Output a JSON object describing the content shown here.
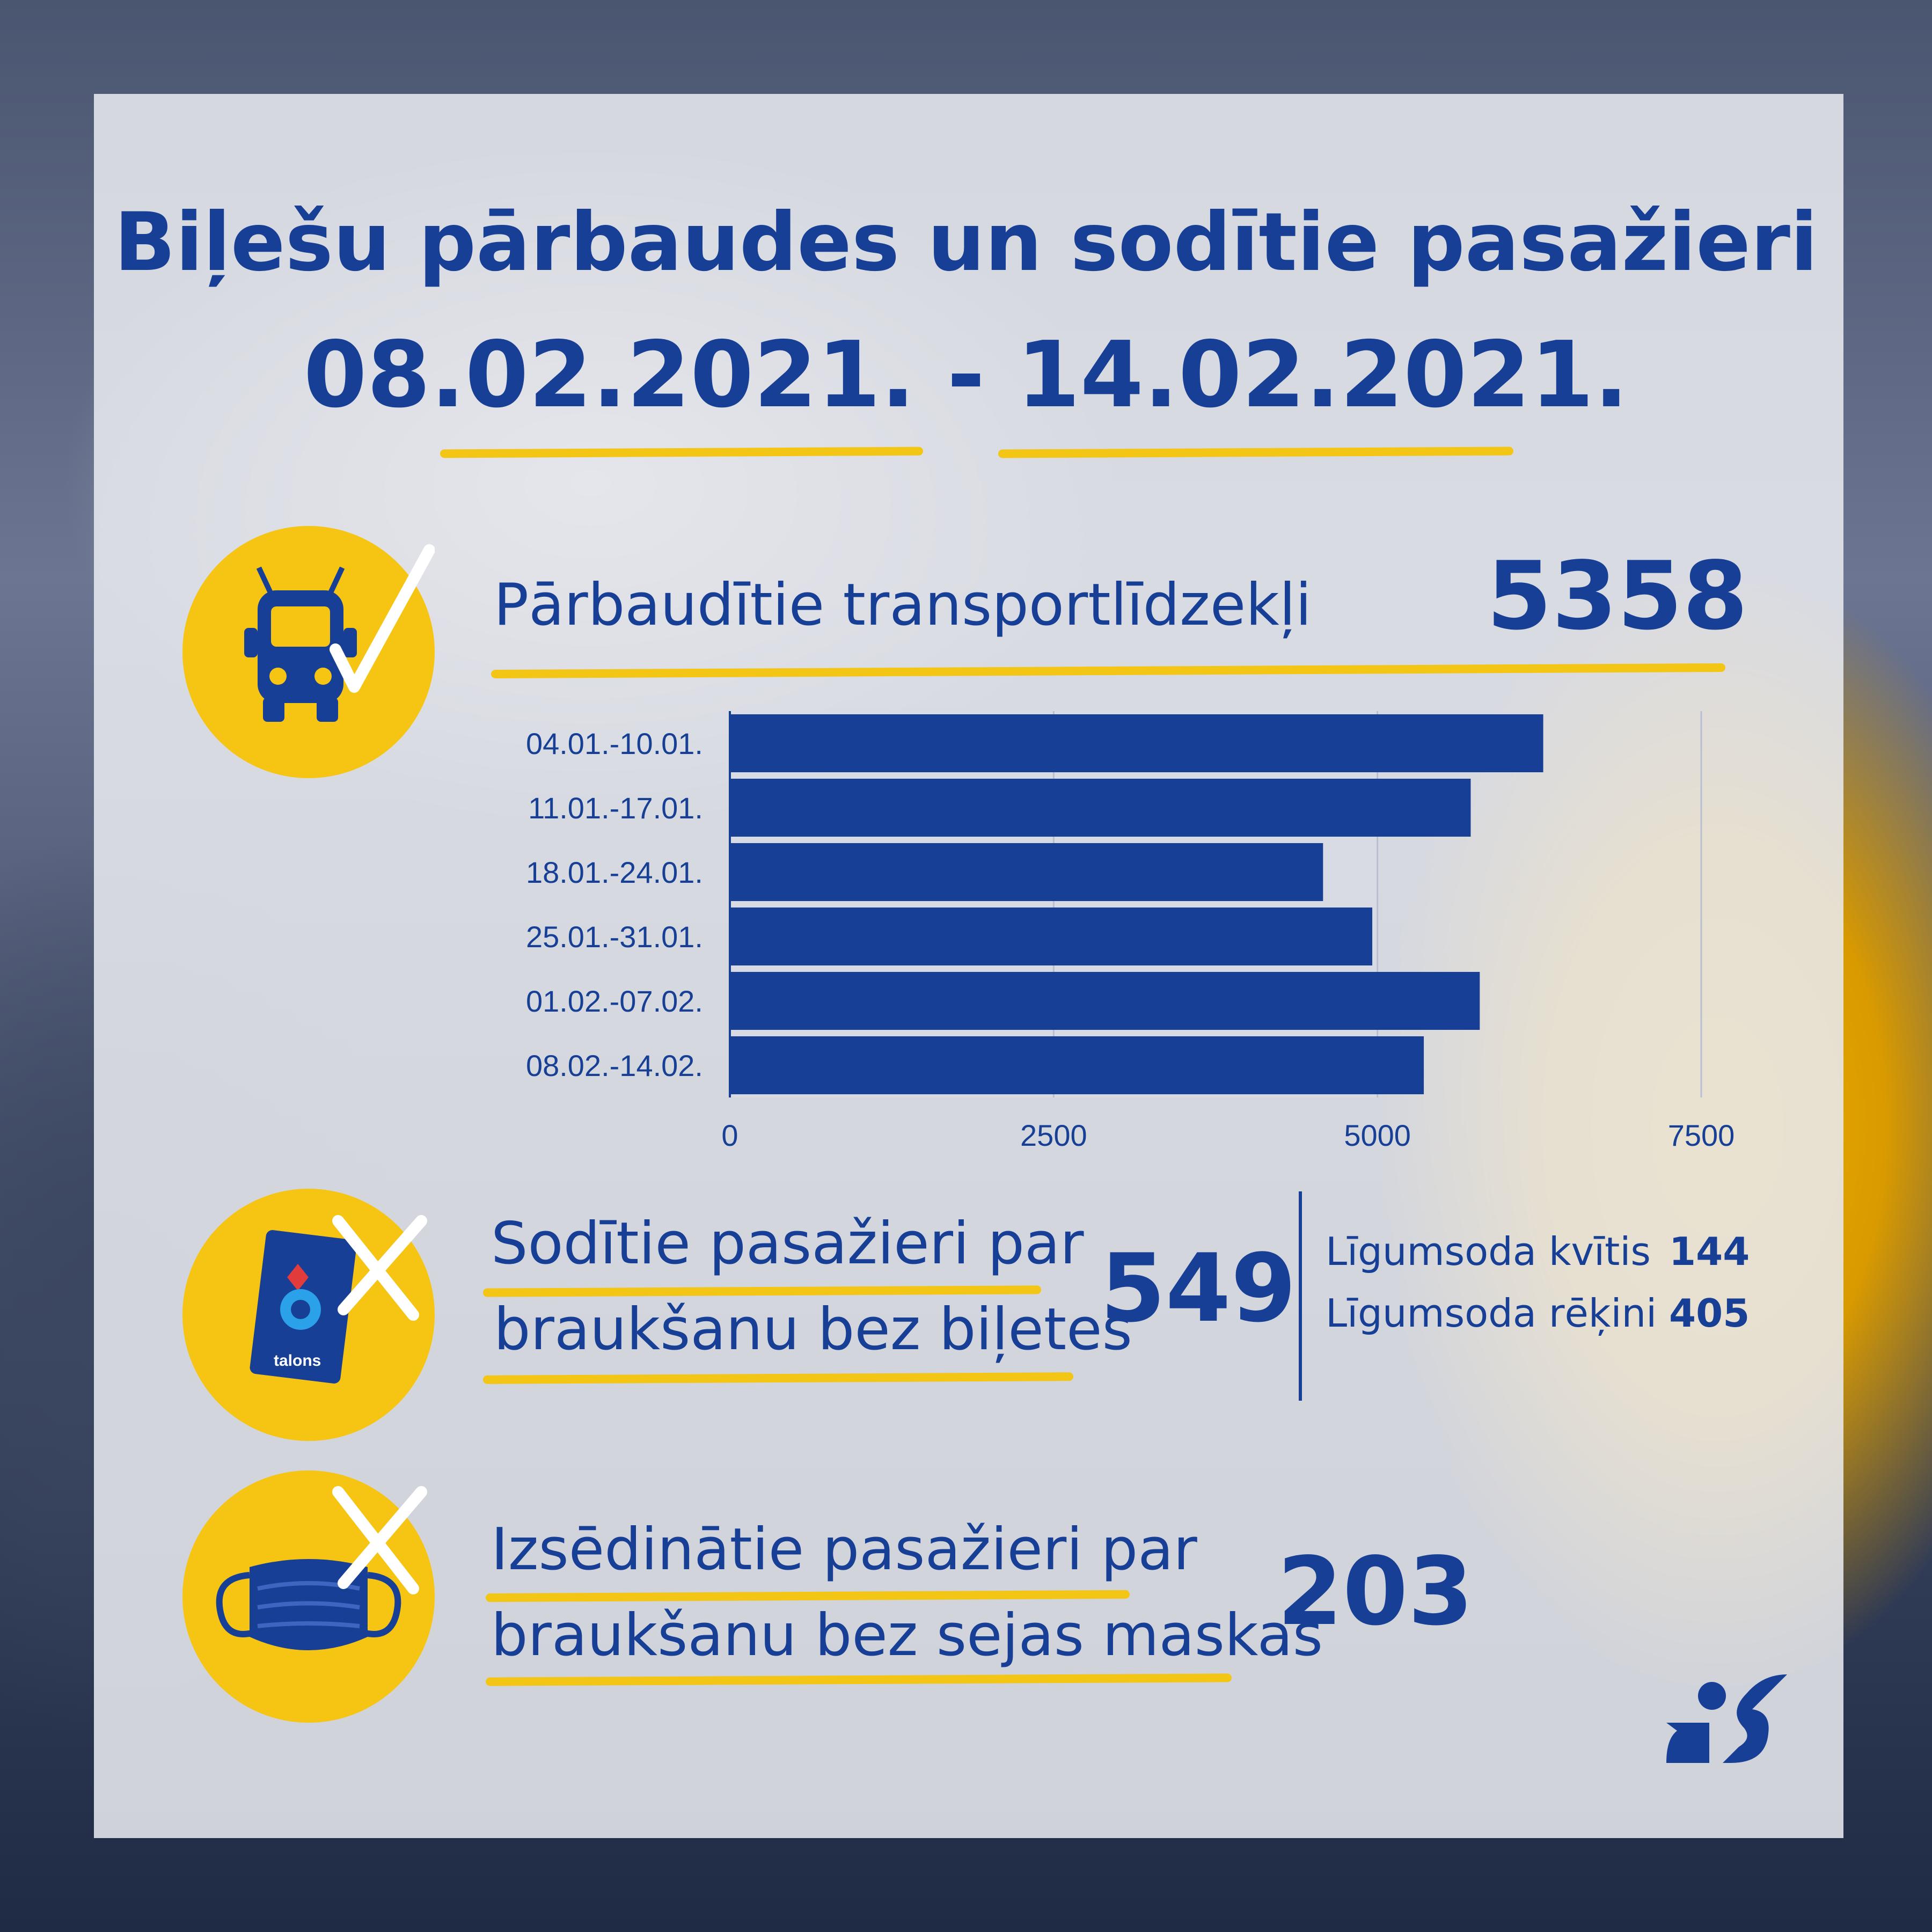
{
  "header": {
    "title_line1": "Biļešu pārbaudes un sodītie pasažieri",
    "title_line2": "08.02.2021. - 14.02.2021."
  },
  "checked": {
    "label": "Pārbaudītie transportlīdzekļi",
    "value": "5358",
    "icon": "bus-check-icon"
  },
  "fined": {
    "label_line1": "Sodītie pasažieri par",
    "label_line2": "braukšanu bez biļetes",
    "value": "549",
    "icon": "etalons-card-cross-icon",
    "card_text": "talons",
    "breakdown": [
      {
        "label": "Līgumsoda kvītis",
        "value": "144"
      },
      {
        "label": "Līgumsoda rēķini",
        "value": "405"
      }
    ]
  },
  "removed": {
    "label_line1": "Izsēdinātie pasažieri par",
    "label_line2": "braukšanu bez sejas maskas",
    "value": "203",
    "icon": "mask-cross-icon"
  },
  "colors": {
    "navy": "#173f96",
    "yellow": "#f6c514",
    "bar": "#173f96"
  },
  "chart_data": {
    "type": "bar",
    "orientation": "horizontal",
    "categories": [
      "04.01.-10.01.",
      "11.01.-17.01.",
      "18.01.-24.01.",
      "25.01.-31.01.",
      "01.02.-07.02.",
      "08.02.-14.02."
    ],
    "values": [
      6280,
      5720,
      4580,
      4960,
      5790,
      5358
    ],
    "xlim": [
      0,
      7500
    ],
    "xticks": [
      "0",
      "2500",
      "5000",
      "7500"
    ],
    "title": "",
    "xlabel": "",
    "ylabel": "",
    "grid": true
  }
}
